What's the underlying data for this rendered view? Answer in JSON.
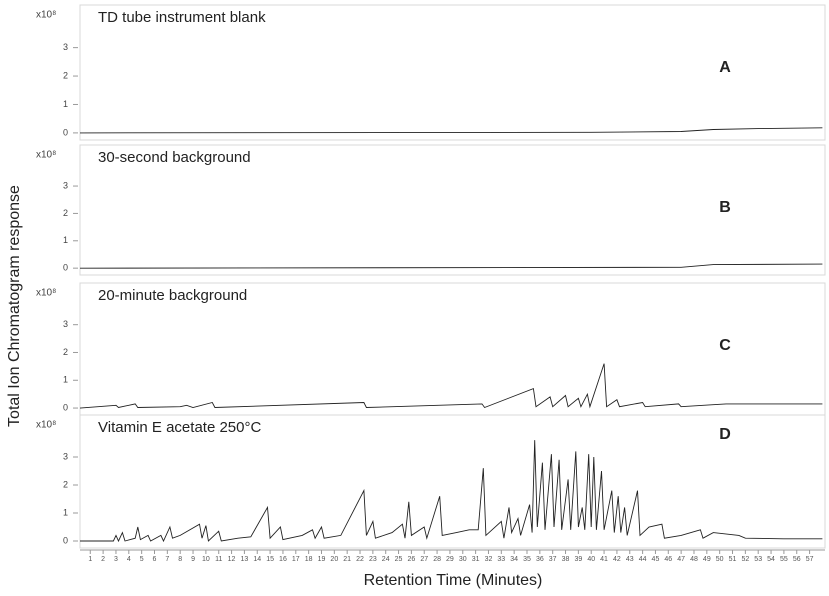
{
  "axis_labels": {
    "y": "Total Ion Chromatogram response",
    "x": "Retention Time (Minutes)"
  },
  "chart_data": [
    {
      "type": "line",
      "title": "TD tube instrument blank",
      "panel": "A",
      "y_unit": "x10⁸",
      "color": "#222222",
      "x": [
        0.2,
        40,
        47,
        49.5,
        53,
        58
      ],
      "values": [
        0,
        0.02,
        0.05,
        0.12,
        0.15,
        0.18
      ],
      "xlim": [
        0.2,
        58.2
      ],
      "ylim": [
        -0.25,
        4.5
      ],
      "yticks": [
        0,
        1,
        2,
        3
      ]
    },
    {
      "type": "line",
      "title": "30-second background",
      "panel": "B",
      "y_unit": "x10⁸",
      "color": "#222222",
      "x": [
        0.2,
        47,
        49.5,
        58
      ],
      "values": [
        0,
        0.03,
        0.13,
        0.15
      ],
      "xlim": [
        0.2,
        58.2
      ],
      "ylim": [
        -0.25,
        4.5
      ],
      "yticks": [
        0,
        1,
        2,
        3
      ]
    },
    {
      "type": "line",
      "title": "20-minute background",
      "panel": "C",
      "y_unit": "x10⁸",
      "color": "#222222",
      "x": [
        0.2,
        3,
        3.2,
        4.5,
        4.7,
        8,
        8.5,
        9,
        10.5,
        10.7,
        22.3,
        22.5,
        31.5,
        31.7,
        35.5,
        35.7,
        36.8,
        37,
        38,
        38.2,
        39,
        39.2,
        39.7,
        39.9,
        41,
        41.2,
        42,
        42.2,
        44,
        44.2,
        46.8,
        47,
        49.5,
        50.5,
        58
      ],
      "values": [
        0,
        0.1,
        0.02,
        0.15,
        0.02,
        0.05,
        0.1,
        0.02,
        0.2,
        0.02,
        0.2,
        0.02,
        0.15,
        0.02,
        0.7,
        0.05,
        0.4,
        0.05,
        0.45,
        0.05,
        0.35,
        0.05,
        0.5,
        0.05,
        1.6,
        0.05,
        0.3,
        0.05,
        0.2,
        0.05,
        0.15,
        0.05,
        0.12,
        0.15,
        0.15
      ],
      "xlim": [
        0.2,
        58.2
      ],
      "ylim": [
        -0.25,
        4.5
      ],
      "yticks": [
        0,
        1,
        2,
        3
      ]
    },
    {
      "type": "line",
      "title": "Vitamin E acetate 250°C",
      "panel": "D",
      "y_unit": "x10⁸",
      "color": "#222222",
      "x": [
        0.2,
        2.8,
        3,
        3.2,
        3.5,
        3.7,
        4.5,
        4.7,
        4.9,
        5.5,
        5.7,
        6.5,
        6.7,
        7.2,
        7.4,
        8,
        9.5,
        9.7,
        10,
        10.2,
        11,
        11.2,
        12.5,
        13.5,
        14.8,
        15,
        15.8,
        16,
        17.5,
        18.3,
        18.5,
        19,
        19.2,
        20.5,
        22.3,
        22.5,
        23,
        23.2,
        24.5,
        25.3,
        25.5,
        25.8,
        26,
        27,
        27.2,
        28.2,
        28.4,
        29.5,
        30.5,
        31.2,
        31.6,
        31.8,
        33,
        33.2,
        33.6,
        33.8,
        34.3,
        34.5,
        35.2,
        35.4,
        35.6,
        35.8,
        36.2,
        36.4,
        36.9,
        37.1,
        37.5,
        37.7,
        38.2,
        38.4,
        38.8,
        39,
        39.3,
        39.5,
        39.8,
        40,
        40.2,
        40.4,
        40.8,
        41,
        41.6,
        41.8,
        42.1,
        42.3,
        42.6,
        42.8,
        43.6,
        43.8,
        44.5,
        45.5,
        45.7,
        47,
        48.5,
        48.7,
        49.5,
        51.5,
        52,
        55,
        58
      ],
      "values": [
        0,
        0,
        0.2,
        0,
        0.3,
        0,
        0.1,
        0.5,
        0.05,
        0.2,
        0,
        0.2,
        0,
        0.5,
        0.1,
        0.2,
        0.6,
        0.1,
        0.55,
        0,
        0.35,
        0,
        0.1,
        0.15,
        1.2,
        0.1,
        0.5,
        0.05,
        0.2,
        0.4,
        0.1,
        0.5,
        0.1,
        0.2,
        1.8,
        0.2,
        0.7,
        0.1,
        0.3,
        0.6,
        0.1,
        1.4,
        0.2,
        0.5,
        0.1,
        1.6,
        0.2,
        0.3,
        0.4,
        0.4,
        2.6,
        0.2,
        0.7,
        0.1,
        1.2,
        0.3,
        0.8,
        0.2,
        1.3,
        0.3,
        3.6,
        0.5,
        2.8,
        0.4,
        3.1,
        0.5,
        2.9,
        0.4,
        2.2,
        0.4,
        3.2,
        0.5,
        1.2,
        0.4,
        3.1,
        0.5,
        3.0,
        0.4,
        2.5,
        0.4,
        1.8,
        0.3,
        1.6,
        0.3,
        1.2,
        0.2,
        1.8,
        0.2,
        0.5,
        0.6,
        0.1,
        0.2,
        0.4,
        0.1,
        0.3,
        0.2,
        0.1,
        0.08,
        0.08
      ],
      "xlim": [
        0.2,
        58.2
      ],
      "ylim": [
        -0.25,
        4.5
      ],
      "yticks": [
        0,
        1,
        2,
        3
      ],
      "xticks": [
        1,
        2,
        3,
        4,
        5,
        6,
        7,
        8,
        9,
        10,
        11,
        12,
        13,
        14,
        15,
        16,
        17,
        18,
        19,
        20,
        21,
        22,
        23,
        24,
        25,
        26,
        27,
        28,
        29,
        30,
        31,
        32,
        33,
        34,
        35,
        36,
        37,
        38,
        39,
        40,
        41,
        42,
        43,
        44,
        45,
        46,
        47,
        48,
        49,
        50,
        51,
        52,
        53,
        54,
        55,
        56,
        57
      ]
    }
  ]
}
